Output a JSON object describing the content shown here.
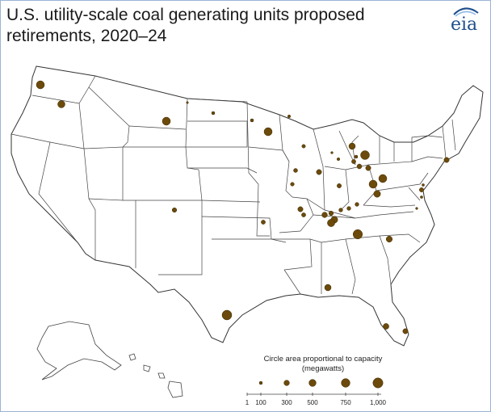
{
  "title": "U.S. utility-scale coal generating units proposed retirements, 2020–24",
  "logo": {
    "text": "eia",
    "icon": "eia-logo"
  },
  "legend": {
    "title_line1": "Circle area proportional to capacity",
    "title_line2": "(megawatts)",
    "sizes": [
      1,
      100,
      300,
      500,
      750,
      1000
    ],
    "labels": [
      "1",
      "100",
      "300",
      "500",
      "750",
      "1,000"
    ]
  },
  "colors": {
    "circle": "#6b4a0b",
    "circle_stroke": "#3f2a03",
    "states": "#ffffff",
    "borders": "#333333"
  }
}
